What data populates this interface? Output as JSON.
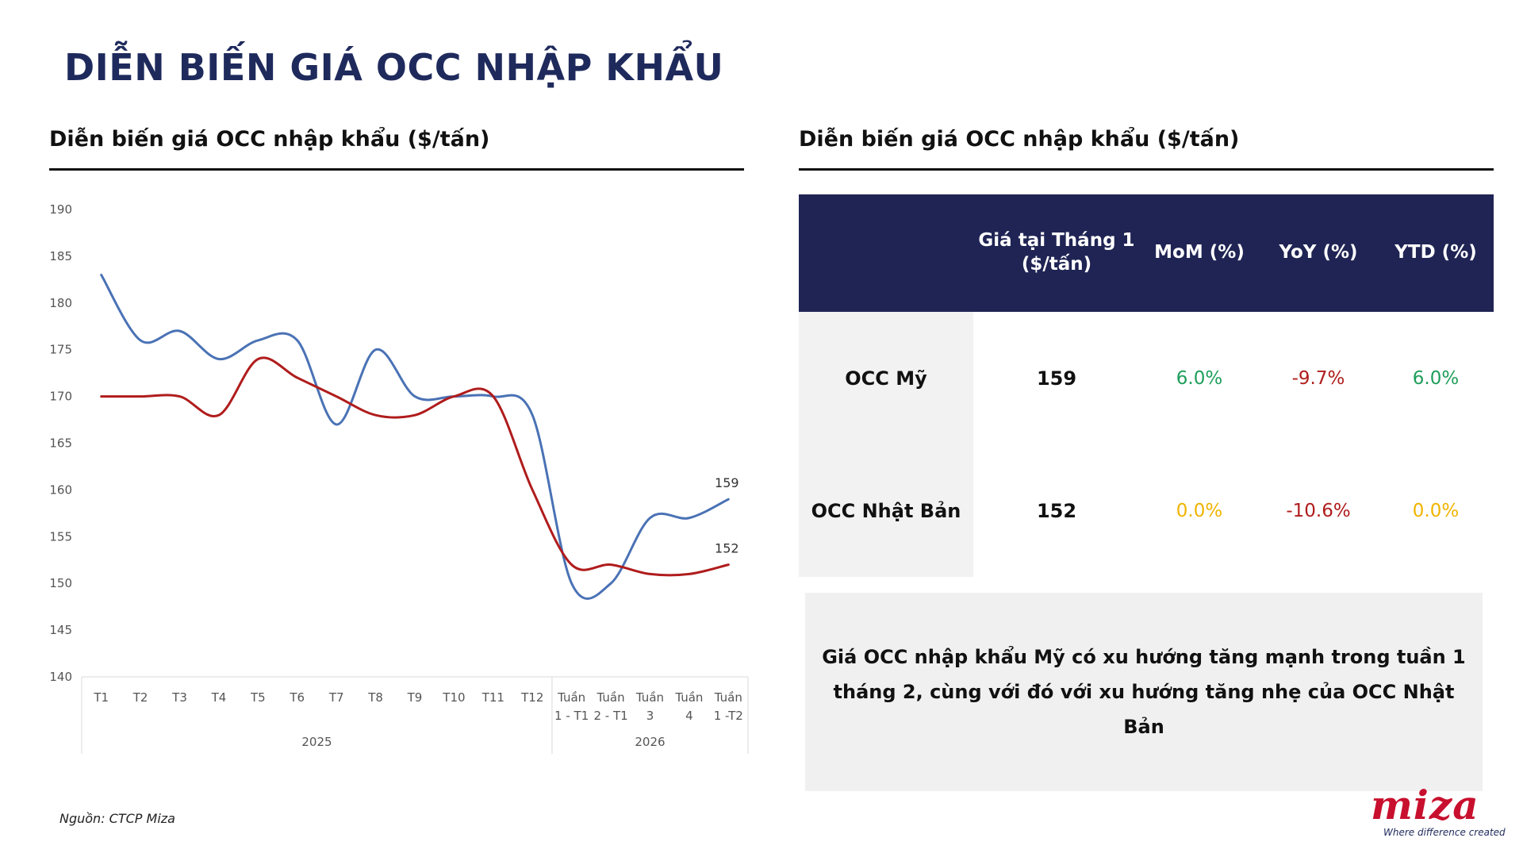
{
  "page": {
    "title": "DIỄN BIẾN GIÁ OCC NHẬP KHẨU",
    "source": "Nguồn: CTCP Miza"
  },
  "left_panel": {
    "title": "Diễn biến giá OCC nhập khẩu ($/tấn)"
  },
  "right_panel": {
    "title": "Diễn biến giá OCC nhập khẩu ($/tấn)"
  },
  "chart_data": {
    "type": "line",
    "title": "",
    "xlabel": "",
    "ylabel": "",
    "ylim": [
      140,
      190
    ],
    "yticks": [
      "190",
      "185",
      "180",
      "175",
      "170",
      "165",
      "160",
      "155",
      "150",
      "145",
      "140"
    ],
    "categories": [
      [
        "T1"
      ],
      [
        "T2"
      ],
      [
        "T3"
      ],
      [
        "T4"
      ],
      [
        "T5"
      ],
      [
        "T6"
      ],
      [
        "T7"
      ],
      [
        "T8"
      ],
      [
        "T9"
      ],
      [
        "T10"
      ],
      [
        "T11"
      ],
      [
        "T12"
      ],
      [
        "Tuần",
        "1 - T1"
      ],
      [
        "Tuần",
        "2 - T1"
      ],
      [
        "Tuần",
        "3"
      ],
      [
        "Tuần",
        "4"
      ],
      [
        "Tuần",
        "1 -T2"
      ]
    ],
    "groups": [
      {
        "label": "2025",
        "count": 12
      },
      {
        "label": "2026",
        "count": 5
      }
    ],
    "series": [
      {
        "color": "#4a72b5",
        "values": [
          183,
          176,
          177,
          174,
          176,
          176,
          167,
          175,
          170,
          170,
          170,
          168,
          150,
          150,
          157,
          157,
          159
        ],
        "end_label": "159"
      },
      {
        "color": "#b01c1c",
        "values": [
          170,
          170,
          170,
          168,
          174,
          172,
          170,
          168,
          168,
          170,
          170,
          160,
          152,
          152,
          151,
          151,
          152
        ],
        "end_label": "152"
      }
    ],
    "grid": false,
    "legend": "none"
  },
  "table": {
    "headers": [
      "",
      "Giá tại Tháng 1 ($/tấn)",
      "MoM (%)",
      "YoY (%)",
      "YTD (%)"
    ],
    "rows": [
      {
        "label": "OCC Mỹ",
        "price": "159",
        "mom": "6.0%",
        "yoy": "-9.7%",
        "ytd": "6.0%",
        "colors": {
          "mom": "#1e9e5a",
          "yoy": "#b01c1c",
          "ytd": "#1e9e5a"
        }
      },
      {
        "label": "OCC Nhật Bản",
        "price": "152",
        "mom": "0.0%",
        "yoy": "-10.6%",
        "ytd": "0.0%",
        "colors": {
          "mom": "#f0b400",
          "yoy": "#b01c1c",
          "ytd": "#f0b400"
        }
      }
    ]
  },
  "note": "Giá OCC nhập khẩu Mỹ có xu hướng tăng mạnh trong tuần 1 tháng 2, cùng với đó với xu hướng tăng nhẹ của OCC Nhật Bản",
  "logo": {
    "text": "miza",
    "tagline": "Where difference created"
  }
}
